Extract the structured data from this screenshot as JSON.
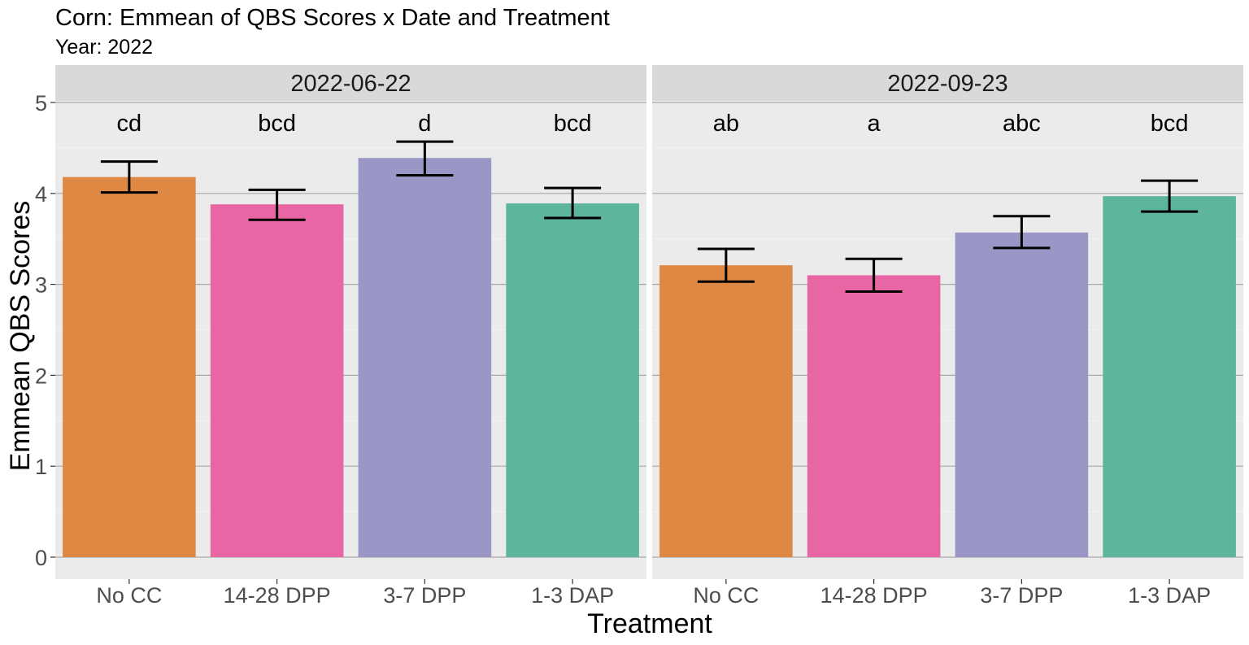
{
  "chart_data": {
    "type": "bar",
    "title": "Corn: Emmean of QBS Scores x Date and Treatment",
    "subtitle": "Year: 2022",
    "xlabel": "Treatment",
    "ylabel": "Emmean QBS Scores",
    "ylim": [
      0,
      5
    ],
    "yticks": [
      "0",
      "1",
      "2",
      "3",
      "4",
      "5"
    ],
    "grid": true,
    "categories": [
      "No CC",
      "14-28 DPP",
      "3-7 DPP",
      "1-3 DAP"
    ],
    "colors": [
      "#DE8844",
      "#E866A4",
      "#9A97C7",
      "#5DB69B"
    ],
    "panels": [
      {
        "label": "2022-06-22",
        "values": [
          4.18,
          3.88,
          4.39,
          3.89
        ],
        "err_low": [
          4.01,
          3.71,
          4.2,
          3.73
        ],
        "err_high": [
          4.35,
          4.04,
          4.57,
          4.06
        ],
        "letters": [
          "cd",
          "bcd",
          "d",
          "bcd"
        ]
      },
      {
        "label": "2022-09-23",
        "values": [
          3.21,
          3.1,
          3.57,
          3.97
        ],
        "err_low": [
          3.03,
          2.92,
          3.4,
          3.8
        ],
        "err_high": [
          3.39,
          3.28,
          3.75,
          4.14
        ],
        "letters": [
          "ab",
          "a",
          "abc",
          "bcd"
        ]
      }
    ]
  }
}
